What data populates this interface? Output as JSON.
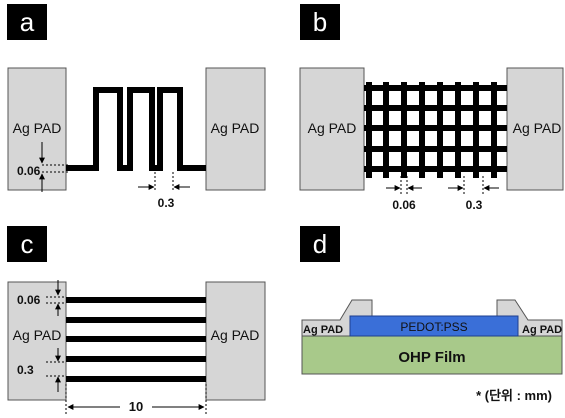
{
  "panels": {
    "a": {
      "letter": "a",
      "left_pad_label": "Ag PAD",
      "right_pad_label": "Ag PAD",
      "line_width_label": "0.06",
      "spacing_label": "0.3"
    },
    "b": {
      "letter": "b",
      "left_pad_label": "Ag PAD",
      "right_pad_label": "Ag PAD",
      "line_width_label": "0.06",
      "spacing_label": "0.3"
    },
    "c": {
      "letter": "c",
      "left_pad_label": "Ag PAD",
      "right_pad_label": "Ag PAD",
      "line_width_label": "0.06",
      "spacing_label": "0.3",
      "length_label": "10"
    },
    "d": {
      "letter": "d",
      "left_pad_label": "Ag PAD",
      "right_pad_label": "Ag PAD",
      "pedot_label": "PEDOT:PSS",
      "film_label": "OHP Film",
      "unit_note": "* (단위 : mm)"
    }
  },
  "colors": {
    "pad_fill": "#d6d6d6",
    "pad_stroke": "#555555",
    "trace": "#000000",
    "badge": "#000000",
    "pedot": "#3a6fd8",
    "film": "#a8c98a"
  }
}
